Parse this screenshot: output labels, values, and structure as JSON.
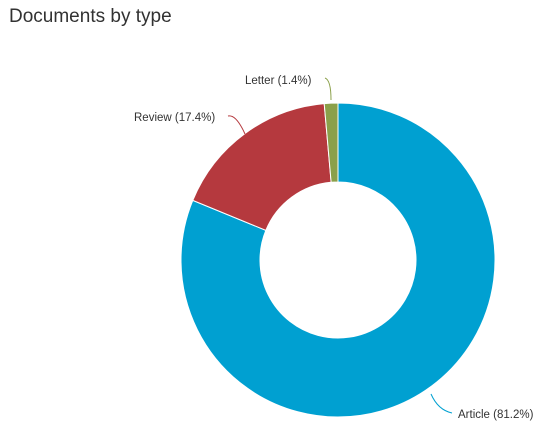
{
  "chart_data": {
    "type": "pie",
    "donut": true,
    "title": "Documents by type",
    "slices": [
      {
        "name": "Article",
        "label": "Article (81.2%)",
        "value": 81.2,
        "color": "#00a0d1"
      },
      {
        "name": "Review",
        "label": "Review (17.4%)",
        "value": 17.4,
        "color": "#b5393e"
      },
      {
        "name": "Letter",
        "label": "Letter (1.4%)",
        "value": 1.4,
        "color": "#8ba04a"
      }
    ],
    "legend": false
  }
}
